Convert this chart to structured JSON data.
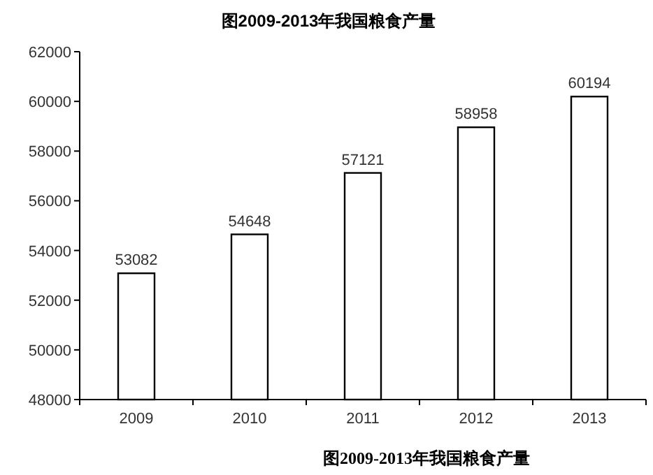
{
  "chart_data": {
    "type": "bar",
    "title": "图2009-2013年我国粮食产量",
    "categories": [
      "2009",
      "2010",
      "2011",
      "2012",
      "2013"
    ],
    "values": [
      53082,
      54648,
      57121,
      58958,
      60194
    ],
    "color": "#ffffff",
    "ylim": [
      48000,
      62000
    ],
    "yticks": [
      48000,
      50000,
      52000,
      54000,
      56000,
      58000,
      60000,
      62000
    ],
    "grid": false,
    "data_labels": true,
    "annotations": [
      "图2009-2013年我国粮食产量"
    ]
  }
}
